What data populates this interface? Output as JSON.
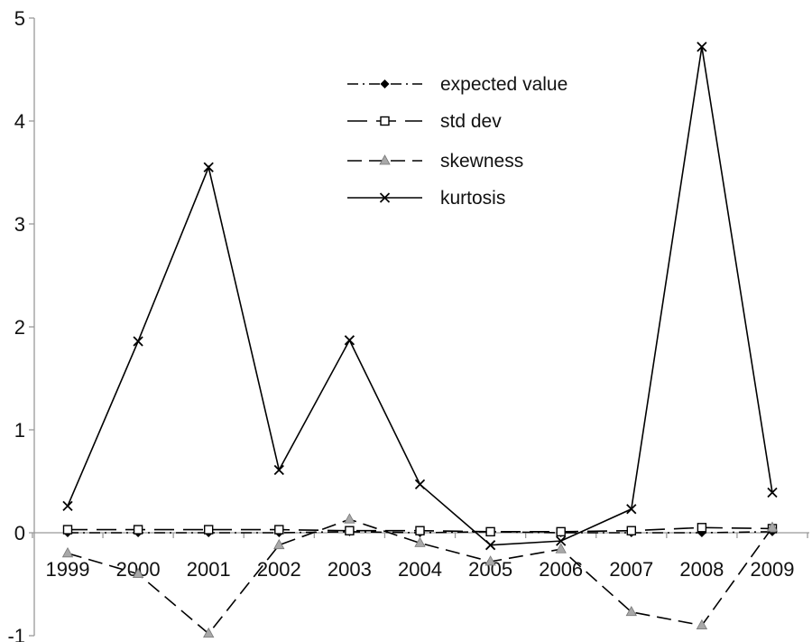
{
  "chart_data": {
    "type": "line",
    "title": "",
    "xlabel": "",
    "ylabel": "",
    "categories": [
      "1999",
      "2000",
      "2001",
      "2002",
      "2003",
      "2004",
      "2005",
      "2006",
      "2007",
      "2008",
      "2009"
    ],
    "ylim": [
      -1,
      5
    ],
    "yticks": [
      "-1",
      "0",
      "1",
      "2",
      "3",
      "4",
      "5"
    ],
    "grid": false,
    "legend_position": "top-center",
    "series": [
      {
        "name": "expected value",
        "style": "dash-dot",
        "marker": "filled-diamond",
        "color": "#000000",
        "values": [
          0.0,
          0.0,
          0.0,
          0.0,
          0.01,
          0.0,
          0.01,
          0.0,
          0.0,
          0.0,
          0.01
        ]
      },
      {
        "name": "std dev",
        "style": "long-dash",
        "marker": "open-square",
        "color": "#000000",
        "values": [
          0.03,
          0.03,
          0.03,
          0.03,
          0.02,
          0.02,
          0.01,
          0.01,
          0.02,
          0.05,
          0.04
        ]
      },
      {
        "name": "skewness",
        "style": "dash",
        "marker": "gray-triangle",
        "color": "#000000",
        "values": [
          -0.2,
          -0.4,
          -0.98,
          -0.12,
          0.13,
          -0.1,
          -0.28,
          -0.16,
          -0.77,
          -0.9,
          0.05
        ]
      },
      {
        "name": "kurtosis",
        "style": "solid",
        "marker": "x",
        "color": "#000000",
        "values": [
          0.26,
          1.86,
          3.55,
          0.61,
          1.87,
          0.47,
          -0.12,
          -0.08,
          0.23,
          4.72,
          0.39
        ]
      }
    ]
  }
}
